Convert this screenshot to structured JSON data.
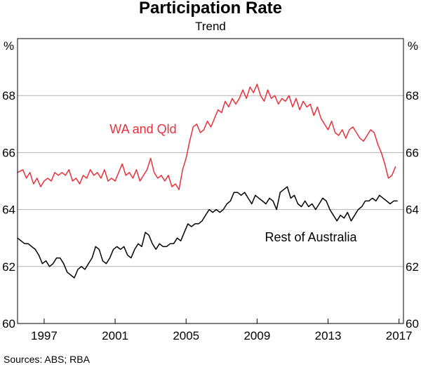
{
  "chart_data": {
    "type": "line",
    "title": "Participation Rate",
    "subtitle": "Trend",
    "unit_left": "%",
    "unit_right": "%",
    "source": "Sources: ABS; RBA",
    "x_range": [
      1995.5,
      2017.25
    ],
    "x_ticks": [
      {
        "value": 1997.0,
        "label": "1997"
      },
      {
        "value": 2001.0,
        "label": "2001"
      },
      {
        "value": 2005.0,
        "label": "2005"
      },
      {
        "value": 2009.0,
        "label": "2009"
      },
      {
        "value": 2013.0,
        "label": "2013"
      },
      {
        "value": 2017.0,
        "label": "2017"
      }
    ],
    "ylim": [
      60,
      70
    ],
    "y_ticks": [
      60,
      62,
      64,
      66,
      68
    ],
    "series": [
      {
        "name": "WA and Qld",
        "label": "WA and Qld",
        "color": "#e8313a",
        "points": [
          [
            1995.5,
            65.3
          ],
          [
            1995.8,
            65.4
          ],
          [
            1996.0,
            65.1
          ],
          [
            1996.2,
            65.3
          ],
          [
            1996.4,
            64.9
          ],
          [
            1996.6,
            65.1
          ],
          [
            1996.8,
            64.8
          ],
          [
            1997.0,
            65.0
          ],
          [
            1997.2,
            65.1
          ],
          [
            1997.4,
            65.0
          ],
          [
            1997.6,
            65.3
          ],
          [
            1997.8,
            65.2
          ],
          [
            1998.0,
            65.3
          ],
          [
            1998.2,
            65.2
          ],
          [
            1998.4,
            65.4
          ],
          [
            1998.6,
            65.0
          ],
          [
            1998.8,
            65.1
          ],
          [
            1999.0,
            64.9
          ],
          [
            1999.2,
            65.2
          ],
          [
            1999.4,
            65.1
          ],
          [
            1999.6,
            65.4
          ],
          [
            1999.8,
            65.2
          ],
          [
            2000.0,
            65.3
          ],
          [
            2000.2,
            65.1
          ],
          [
            2000.4,
            65.4
          ],
          [
            2000.6,
            65.0
          ],
          [
            2000.8,
            65.1
          ],
          [
            2001.0,
            65.0
          ],
          [
            2001.2,
            65.3
          ],
          [
            2001.4,
            65.6
          ],
          [
            2001.6,
            65.2
          ],
          [
            2001.8,
            65.3
          ],
          [
            2002.0,
            65.1
          ],
          [
            2002.2,
            65.4
          ],
          [
            2002.4,
            65.0
          ],
          [
            2002.6,
            65.2
          ],
          [
            2002.8,
            65.4
          ],
          [
            2003.0,
            65.8
          ],
          [
            2003.2,
            65.3
          ],
          [
            2003.4,
            65.1
          ],
          [
            2003.6,
            65.2
          ],
          [
            2003.8,
            65.0
          ],
          [
            2004.0,
            65.2
          ],
          [
            2004.2,
            64.8
          ],
          [
            2004.4,
            64.9
          ],
          [
            2004.6,
            64.7
          ],
          [
            2004.8,
            65.4
          ],
          [
            2005.0,
            65.8
          ],
          [
            2005.2,
            66.4
          ],
          [
            2005.4,
            66.9
          ],
          [
            2005.6,
            67.0
          ],
          [
            2005.8,
            66.7
          ],
          [
            2006.0,
            66.8
          ],
          [
            2006.2,
            67.1
          ],
          [
            2006.4,
            66.9
          ],
          [
            2006.6,
            67.2
          ],
          [
            2006.8,
            67.5
          ],
          [
            2007.0,
            67.4
          ],
          [
            2007.2,
            67.8
          ],
          [
            2007.4,
            67.6
          ],
          [
            2007.6,
            67.9
          ],
          [
            2007.8,
            67.7
          ],
          [
            2008.0,
            67.9
          ],
          [
            2008.2,
            68.2
          ],
          [
            2008.4,
            67.9
          ],
          [
            2008.6,
            68.3
          ],
          [
            2008.8,
            68.1
          ],
          [
            2009.0,
            68.4
          ],
          [
            2009.2,
            68.0
          ],
          [
            2009.4,
            67.8
          ],
          [
            2009.6,
            68.2
          ],
          [
            2009.8,
            67.9
          ],
          [
            2010.0,
            68.0
          ],
          [
            2010.2,
            67.7
          ],
          [
            2010.4,
            67.9
          ],
          [
            2010.6,
            67.8
          ],
          [
            2010.8,
            68.0
          ],
          [
            2011.0,
            67.6
          ],
          [
            2011.2,
            67.9
          ],
          [
            2011.4,
            67.5
          ],
          [
            2011.6,
            67.8
          ],
          [
            2011.8,
            67.6
          ],
          [
            2012.0,
            67.7
          ],
          [
            2012.2,
            67.3
          ],
          [
            2012.4,
            67.6
          ],
          [
            2012.6,
            67.2
          ],
          [
            2012.8,
            67.0
          ],
          [
            2013.0,
            66.8
          ],
          [
            2013.2,
            67.1
          ],
          [
            2013.4,
            66.7
          ],
          [
            2013.6,
            66.6
          ],
          [
            2013.8,
            66.8
          ],
          [
            2014.0,
            66.5
          ],
          [
            2014.2,
            66.8
          ],
          [
            2014.4,
            66.9
          ],
          [
            2014.6,
            66.7
          ],
          [
            2014.8,
            66.5
          ],
          [
            2015.0,
            66.4
          ],
          [
            2015.2,
            66.6
          ],
          [
            2015.4,
            66.8
          ],
          [
            2015.6,
            66.7
          ],
          [
            2015.8,
            66.3
          ],
          [
            2016.0,
            66.0
          ],
          [
            2016.2,
            65.6
          ],
          [
            2016.4,
            65.1
          ],
          [
            2016.6,
            65.2
          ],
          [
            2016.8,
            65.5
          ]
        ]
      },
      {
        "name": "Rest of Australia",
        "label": "Rest of Australia",
        "color": "#000000",
        "points": [
          [
            1995.5,
            63.0
          ],
          [
            1995.7,
            62.9
          ],
          [
            1995.9,
            62.8
          ],
          [
            1996.1,
            62.8
          ],
          [
            1996.3,
            62.7
          ],
          [
            1996.5,
            62.6
          ],
          [
            1996.7,
            62.4
          ],
          [
            1996.9,
            62.1
          ],
          [
            1997.1,
            62.2
          ],
          [
            1997.3,
            62.0
          ],
          [
            1997.5,
            62.1
          ],
          [
            1997.7,
            62.3
          ],
          [
            1997.9,
            62.3
          ],
          [
            1998.1,
            62.1
          ],
          [
            1998.3,
            61.8
          ],
          [
            1998.5,
            61.7
          ],
          [
            1998.7,
            61.6
          ],
          [
            1998.9,
            61.9
          ],
          [
            1999.1,
            62.0
          ],
          [
            1999.3,
            61.9
          ],
          [
            1999.5,
            62.1
          ],
          [
            1999.7,
            62.3
          ],
          [
            1999.9,
            62.7
          ],
          [
            2000.1,
            62.6
          ],
          [
            2000.3,
            62.2
          ],
          [
            2000.5,
            62.1
          ],
          [
            2000.7,
            62.3
          ],
          [
            2000.9,
            62.6
          ],
          [
            2001.1,
            62.7
          ],
          [
            2001.3,
            62.6
          ],
          [
            2001.5,
            62.7
          ],
          [
            2001.7,
            62.4
          ],
          [
            2001.9,
            62.3
          ],
          [
            2002.1,
            62.6
          ],
          [
            2002.3,
            62.8
          ],
          [
            2002.5,
            62.7
          ],
          [
            2002.7,
            63.2
          ],
          [
            2002.9,
            63.1
          ],
          [
            2003.1,
            62.8
          ],
          [
            2003.3,
            62.6
          ],
          [
            2003.5,
            62.8
          ],
          [
            2003.7,
            62.7
          ],
          [
            2003.9,
            62.7
          ],
          [
            2004.1,
            62.8
          ],
          [
            2004.3,
            62.8
          ],
          [
            2004.5,
            63.0
          ],
          [
            2004.7,
            62.9
          ],
          [
            2004.9,
            63.2
          ],
          [
            2005.1,
            63.5
          ],
          [
            2005.3,
            63.4
          ],
          [
            2005.5,
            63.5
          ],
          [
            2005.7,
            63.5
          ],
          [
            2005.9,
            63.6
          ],
          [
            2006.1,
            63.8
          ],
          [
            2006.3,
            64.0
          ],
          [
            2006.5,
            63.9
          ],
          [
            2006.7,
            64.0
          ],
          [
            2006.9,
            63.9
          ],
          [
            2007.1,
            64.0
          ],
          [
            2007.3,
            64.2
          ],
          [
            2007.5,
            64.3
          ],
          [
            2007.7,
            64.6
          ],
          [
            2007.9,
            64.6
          ],
          [
            2008.1,
            64.5
          ],
          [
            2008.3,
            64.6
          ],
          [
            2008.5,
            64.4
          ],
          [
            2008.7,
            64.2
          ],
          [
            2008.9,
            64.5
          ],
          [
            2009.1,
            64.4
          ],
          [
            2009.3,
            64.3
          ],
          [
            2009.5,
            64.2
          ],
          [
            2009.7,
            64.4
          ],
          [
            2009.9,
            64.3
          ],
          [
            2010.1,
            64.0
          ],
          [
            2010.3,
            64.6
          ],
          [
            2010.5,
            64.7
          ],
          [
            2010.7,
            64.8
          ],
          [
            2010.9,
            64.4
          ],
          [
            2011.1,
            64.5
          ],
          [
            2011.3,
            64.2
          ],
          [
            2011.5,
            64.1
          ],
          [
            2011.7,
            64.3
          ],
          [
            2011.9,
            64.1
          ],
          [
            2012.1,
            64.2
          ],
          [
            2012.3,
            64.0
          ],
          [
            2012.5,
            64.2
          ],
          [
            2012.7,
            64.4
          ],
          [
            2012.9,
            64.3
          ],
          [
            2013.1,
            64.0
          ],
          [
            2013.3,
            63.8
          ],
          [
            2013.5,
            63.6
          ],
          [
            2013.7,
            63.8
          ],
          [
            2013.9,
            63.7
          ],
          [
            2014.1,
            63.9
          ],
          [
            2014.3,
            63.6
          ],
          [
            2014.5,
            63.8
          ],
          [
            2014.7,
            64.0
          ],
          [
            2014.9,
            64.1
          ],
          [
            2015.1,
            64.3
          ],
          [
            2015.3,
            64.3
          ],
          [
            2015.5,
            64.4
          ],
          [
            2015.7,
            64.3
          ],
          [
            2015.9,
            64.5
          ],
          [
            2016.1,
            64.4
          ],
          [
            2016.3,
            64.3
          ],
          [
            2016.5,
            64.2
          ],
          [
            2016.7,
            64.3
          ],
          [
            2016.9,
            64.3
          ]
        ]
      }
    ]
  }
}
